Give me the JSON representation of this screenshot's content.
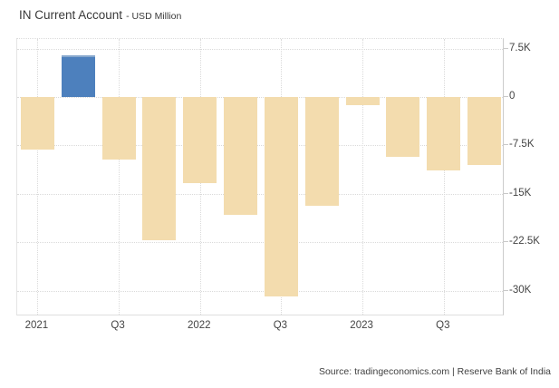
{
  "header": {
    "title": "IN Current Account",
    "subtitle": "- USD Million"
  },
  "footer": {
    "source": "Source: tradingeconomics.com | Reserve Bank of India"
  },
  "colors": {
    "bar_negative": "#f3dcae",
    "bar_positive": "#4d80bd",
    "bar_positive_edge": "#87a8cd",
    "grid": "#dadada",
    "axis_line": "#cccccc",
    "text": "#444444",
    "background": "#ffffff"
  },
  "chart_data": {
    "type": "bar",
    "title": "IN Current Account - USD Million",
    "unit": "USD Million",
    "categories": [
      "2021 Q1",
      "2021 Q2",
      "2021 Q3",
      "2021 Q4",
      "2022 Q1",
      "2022 Q2",
      "2022 Q3",
      "2022 Q4",
      "2023 Q1",
      "2023 Q2",
      "2023 Q3",
      "2023 Q4"
    ],
    "values": [
      -8100,
      6500,
      -9700,
      -22200,
      -13400,
      -18200,
      -30900,
      -16800,
      -1300,
      -9200,
      -11400,
      -10500
    ],
    "x_tick_labels": [
      {
        "index": 0,
        "label": "2021"
      },
      {
        "index": 2,
        "label": "Q3"
      },
      {
        "index": 4,
        "label": "2022"
      },
      {
        "index": 6,
        "label": "Q3"
      },
      {
        "index": 8,
        "label": "2023"
      },
      {
        "index": 10,
        "label": "Q3"
      }
    ],
    "y_ticks": [
      {
        "value": 7500,
        "label": "7.5K"
      },
      {
        "value": 0,
        "label": "0"
      },
      {
        "value": -7500,
        "label": "-7.5K"
      },
      {
        "value": -15000,
        "label": "-15K"
      },
      {
        "value": -22500,
        "label": "-22.5K"
      },
      {
        "value": -30000,
        "label": "-30K"
      }
    ],
    "ylim": [
      -34000,
      9000
    ],
    "grid": true,
    "legend": false,
    "xlabel": "",
    "ylabel": ""
  }
}
